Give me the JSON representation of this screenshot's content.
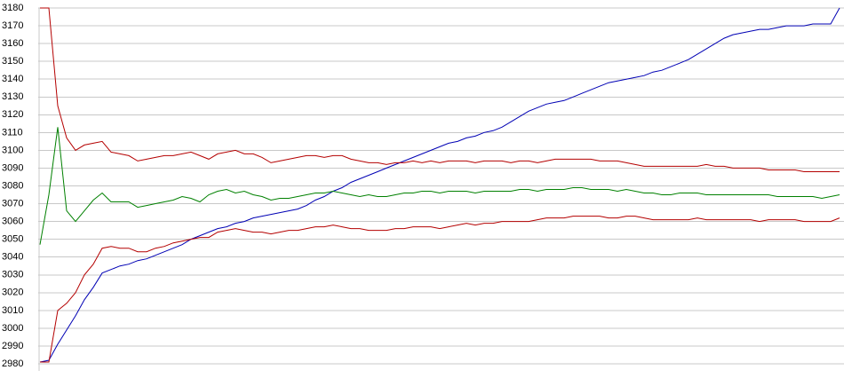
{
  "chart_data": {
    "type": "line",
    "ylim": [
      2980,
      3180
    ],
    "yticks": [
      2980,
      2990,
      3000,
      3010,
      3020,
      3030,
      3040,
      3050,
      3060,
      3070,
      3080,
      3090,
      3100,
      3110,
      3120,
      3130,
      3140,
      3150,
      3160,
      3170,
      3180
    ],
    "grid": true,
    "series": [
      {
        "color": "#0000b4",
        "values": [
          2981,
          2982,
          2991,
          2999,
          3007,
          3016,
          3023,
          3031,
          3033,
          3035,
          3036,
          3038,
          3039,
          3041,
          3043,
          3045,
          3047,
          3050,
          3052,
          3054,
          3056,
          3057,
          3059,
          3060,
          3062,
          3063,
          3064,
          3065,
          3066,
          3067,
          3069,
          3072,
          3074,
          3077,
          3079,
          3082,
          3084,
          3086,
          3088,
          3090,
          3092,
          3094,
          3096,
          3098,
          3100,
          3102,
          3104,
          3105,
          3107,
          3108,
          3110,
          3111,
          3113,
          3116,
          3119,
          3122,
          3124,
          3126,
          3127,
          3128,
          3130,
          3132,
          3134,
          3136,
          3138,
          3139,
          3140,
          3141,
          3142,
          3144,
          3145,
          3147,
          3149,
          3151,
          3154,
          3157,
          3160,
          3163,
          3165,
          3166,
          3167,
          3168,
          3168,
          3169,
          3170,
          3170,
          3170,
          3171,
          3171,
          3171,
          3180
        ]
      },
      {
        "color": "#b40000",
        "values": [
          3180,
          3180,
          3125,
          3107,
          3100,
          3103,
          3104,
          3105,
          3099,
          3098,
          3097,
          3094,
          3095,
          3096,
          3097,
          3097,
          3098,
          3099,
          3097,
          3095,
          3098,
          3099,
          3100,
          3098,
          3098,
          3096,
          3093,
          3094,
          3095,
          3096,
          3097,
          3097,
          3096,
          3097,
          3097,
          3095,
          3094,
          3093,
          3093,
          3092,
          3093,
          3093,
          3094,
          3093,
          3094,
          3093,
          3094,
          3094,
          3094,
          3093,
          3094,
          3094,
          3094,
          3093,
          3094,
          3094,
          3093,
          3094,
          3095,
          3095,
          3095,
          3095,
          3095,
          3094,
          3094,
          3094,
          3093,
          3092,
          3091,
          3091,
          3091,
          3091,
          3091,
          3091,
          3091,
          3092,
          3091,
          3091,
          3090,
          3090,
          3090,
          3090,
          3089,
          3089,
          3089,
          3089,
          3088,
          3088,
          3088,
          3088,
          3088
        ]
      },
      {
        "color": "#008000",
        "values": [
          3047,
          3075,
          3113,
          3066,
          3060,
          3066,
          3072,
          3076,
          3071,
          3071,
          3071,
          3068,
          3069,
          3070,
          3071,
          3072,
          3074,
          3073,
          3071,
          3075,
          3077,
          3078,
          3076,
          3077,
          3075,
          3074,
          3072,
          3073,
          3073,
          3074,
          3075,
          3076,
          3076,
          3077,
          3076,
          3075,
          3074,
          3075,
          3074,
          3074,
          3075,
          3076,
          3076,
          3077,
          3077,
          3076,
          3077,
          3077,
          3077,
          3076,
          3077,
          3077,
          3077,
          3077,
          3078,
          3078,
          3077,
          3078,
          3078,
          3078,
          3079,
          3079,
          3078,
          3078,
          3078,
          3077,
          3078,
          3077,
          3076,
          3076,
          3075,
          3075,
          3076,
          3076,
          3076,
          3075,
          3075,
          3075,
          3075,
          3075,
          3075,
          3075,
          3075,
          3074,
          3074,
          3074,
          3074,
          3074,
          3073,
          3074,
          3075
        ]
      },
      {
        "color": "#b40000",
        "values": [
          2981,
          2981,
          3010,
          3014,
          3020,
          3030,
          3036,
          3045,
          3046,
          3045,
          3045,
          3043,
          3043,
          3045,
          3046,
          3048,
          3049,
          3050,
          3051,
          3051,
          3054,
          3055,
          3056,
          3055,
          3054,
          3054,
          3053,
          3054,
          3055,
          3055,
          3056,
          3057,
          3057,
          3058,
          3057,
          3056,
          3056,
          3055,
          3055,
          3055,
          3056,
          3056,
          3057,
          3057,
          3057,
          3056,
          3057,
          3058,
          3059,
          3058,
          3059,
          3059,
          3060,
          3060,
          3060,
          3060,
          3061,
          3062,
          3062,
          3062,
          3063,
          3063,
          3063,
          3063,
          3062,
          3062,
          3063,
          3063,
          3062,
          3061,
          3061,
          3061,
          3061,
          3061,
          3062,
          3061,
          3061,
          3061,
          3061,
          3061,
          3061,
          3060,
          3061,
          3061,
          3061,
          3061,
          3060,
          3060,
          3060,
          3060,
          3062
        ]
      }
    ]
  }
}
